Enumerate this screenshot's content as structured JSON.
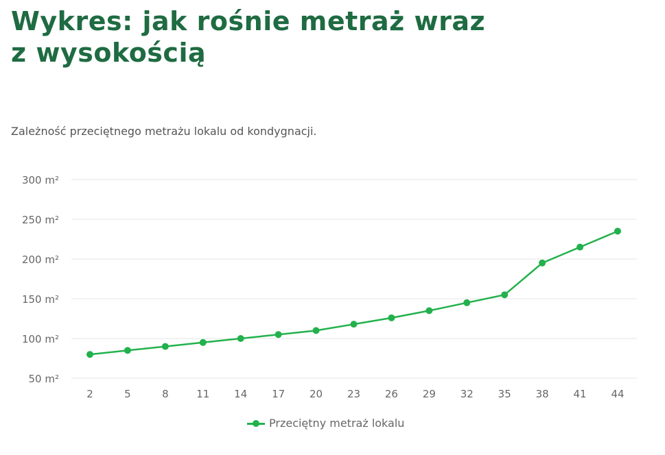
{
  "header": {
    "title": "Wykres: jak rośnie metraż wraz z wysokością",
    "subtitle": "Zależność przeciętnego metrażu lokalu od kondygnacji."
  },
  "colors": {
    "title": "#1f6b42",
    "series": "#22b14c",
    "grid": "#e6e6e6",
    "axis_text": "#666666"
  },
  "chart_data": {
    "type": "line",
    "title": "Wykres: jak rośnie metraż wraz z wysokością",
    "subtitle": "Zależność przeciętnego metrażu lokalu od kondygnacji.",
    "xlabel": "",
    "ylabel": "",
    "categories": [
      "2",
      "5",
      "8",
      "11",
      "14",
      "17",
      "20",
      "23",
      "26",
      "29",
      "32",
      "35",
      "38",
      "41",
      "44"
    ],
    "series": [
      {
        "name": "Przeciętny metraż lokalu",
        "values": [
          80,
          85,
          90,
          95,
          100,
          105,
          110,
          118,
          126,
          135,
          145,
          155,
          195,
          215,
          235
        ]
      }
    ],
    "ylim": [
      50,
      300
    ],
    "yticks": [
      50,
      100,
      150,
      200,
      250,
      300
    ],
    "ytick_labels": [
      "50 m²",
      "100 m²",
      "150 m²",
      "200 m²",
      "250 m²",
      "300 m²"
    ],
    "grid": true,
    "legend_position": "bottom"
  },
  "legend": {
    "label": "Przeciętny metraż lokalu"
  }
}
